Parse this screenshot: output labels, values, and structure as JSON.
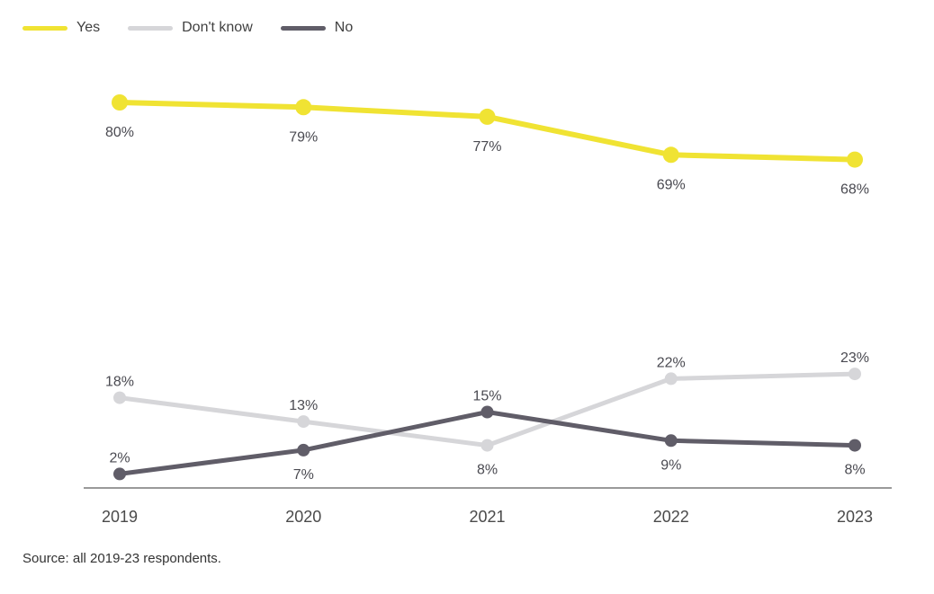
{
  "chart": {
    "source_note": "Source: all 2019-23 respondents.",
    "colors": {
      "axis": "#9a9a9a",
      "data_label": "#4a4a51",
      "tick_label": "#4a4a4a",
      "legend_text": "#404040",
      "source_text": "#333333",
      "background": "#ffffff"
    }
  },
  "chart_data": {
    "type": "line",
    "title": "",
    "xlabel": "",
    "ylabel": "",
    "x": [
      "2019",
      "2020",
      "2021",
      "2022",
      "2023"
    ],
    "series": [
      {
        "name": "Yes",
        "values": [
          80,
          79,
          77,
          69,
          68
        ],
        "labels": [
          "80%",
          "79%",
          "77%",
          "69%",
          "68%"
        ],
        "color": "#f0e333",
        "line_width": 6,
        "point_radius": 9,
        "label_positions": [
          "below",
          "below",
          "below",
          "below",
          "below"
        ]
      },
      {
        "name": "Don't know",
        "values": [
          18,
          13,
          8,
          22,
          23
        ],
        "labels": [
          "18%",
          "13%",
          "8%",
          "22%",
          "23%"
        ],
        "color": "#d6d6d9",
        "line_width": 5,
        "point_radius": 7,
        "label_positions": [
          "above",
          "above",
          "below",
          "above",
          "above"
        ]
      },
      {
        "name": "No",
        "values": [
          2,
          7,
          15,
          9,
          8
        ],
        "labels": [
          "2%",
          "7%",
          "15%",
          "9%",
          "8%"
        ],
        "color": "#605d68",
        "line_width": 5,
        "point_radius": 7,
        "label_positions": [
          "above",
          "below",
          "above",
          "below",
          "below"
        ]
      }
    ],
    "ylim": [
      0,
      100
    ],
    "grid": false,
    "legend_position": "top-left",
    "x_axis_line": true
  }
}
